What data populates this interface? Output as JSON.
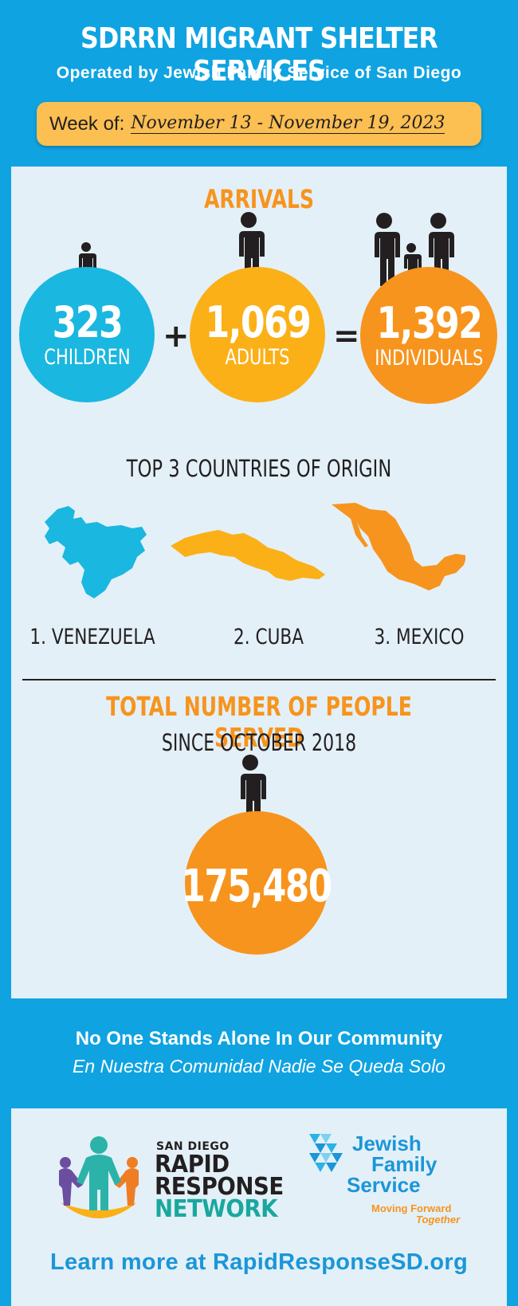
{
  "header": {
    "title": "SDRRN MIGRANT SHELTER SERVICES",
    "subtitle": "Operated by Jewish Family Service of San Diego",
    "week_label": "Week of:",
    "week_dates": "November 13 - November 19, 2023"
  },
  "arrivals": {
    "title": "ARRIVALS",
    "children": {
      "value": "323",
      "label": "CHILDREN"
    },
    "plus": "+",
    "adults": {
      "value": "1,069",
      "label": "ADULTS"
    },
    "equals": "=",
    "individuals": {
      "value": "1,392",
      "label": "INDIVIDUALS"
    }
  },
  "countries": {
    "title": "TOP 3 COUNTRIES OF ORIGIN",
    "items": [
      "1. VENEZUELA",
      "2. CUBA",
      "3. MEXICO"
    ]
  },
  "total": {
    "title": "TOTAL NUMBER OF PEOPLE SERVED",
    "since": "SINCE OCTOBER 2018",
    "value": "175,480"
  },
  "slogan": {
    "english": "No One Stands Alone In Our Community",
    "spanish": "En Nuestra Comunidad Nadie Se Queda Solo"
  },
  "logos": {
    "rrn": {
      "small": "SAN DIEGO",
      "line1": "RAPID",
      "line2": "RESPONSE",
      "line3": "NETWORK"
    },
    "jfs": {
      "line1": "Jewish",
      "line2": "Family",
      "line3": "Service",
      "tagline1": "Moving Forward",
      "tagline2": "Together"
    }
  },
  "footer": {
    "learn_more": "Learn more at RapidResponseSD.org"
  },
  "colors": {
    "background_blue": "#0fa3e1",
    "panel": "#e3f0f8",
    "orange": "#f7941d",
    "yellow": "#fbb017",
    "cyan": "#1ab7e0",
    "dark": "#231f20"
  }
}
